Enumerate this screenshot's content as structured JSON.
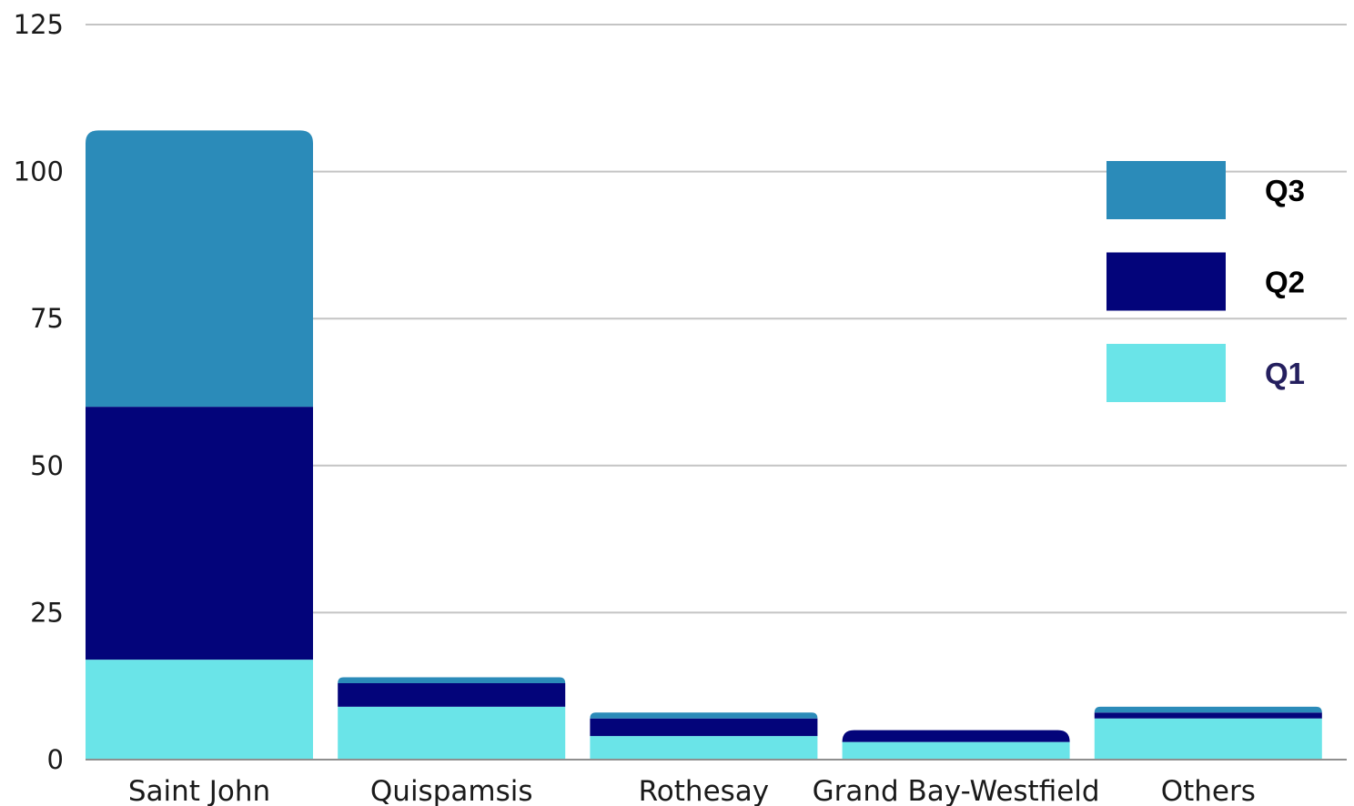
{
  "chart_data": {
    "type": "bar",
    "stacked": true,
    "title": "",
    "xlabel": "",
    "ylabel": "",
    "ylim": [
      0,
      125
    ],
    "yticks": [
      0,
      25,
      50,
      75,
      100,
      125
    ],
    "grid": true,
    "legend_position": "right",
    "categories": [
      "Saint John",
      "Quispamsis",
      "Rothesay",
      "Grand Bay-Westfield",
      "Others"
    ],
    "series": [
      {
        "name": "Q1",
        "color": "#6ae4e8",
        "values": [
          17,
          9,
          4,
          3,
          7
        ]
      },
      {
        "name": "Q2",
        "color": "#03047a",
        "values": [
          43,
          4,
          3,
          2,
          1
        ]
      },
      {
        "name": "Q3",
        "color": "#2b8bb9",
        "values": [
          47,
          1,
          1,
          0,
          1
        ]
      }
    ],
    "legend": [
      {
        "label": "Q3",
        "color": "#2b8bb9",
        "text_color": "#000000"
      },
      {
        "label": "Q2",
        "color": "#03047a",
        "text_color": "#000000"
      },
      {
        "label": "Q1",
        "color": "#6ae4e8",
        "text_color": "#241f5e"
      }
    ],
    "gridline_color": "#c4c4c4",
    "axis_color": "#8f8f8f"
  }
}
